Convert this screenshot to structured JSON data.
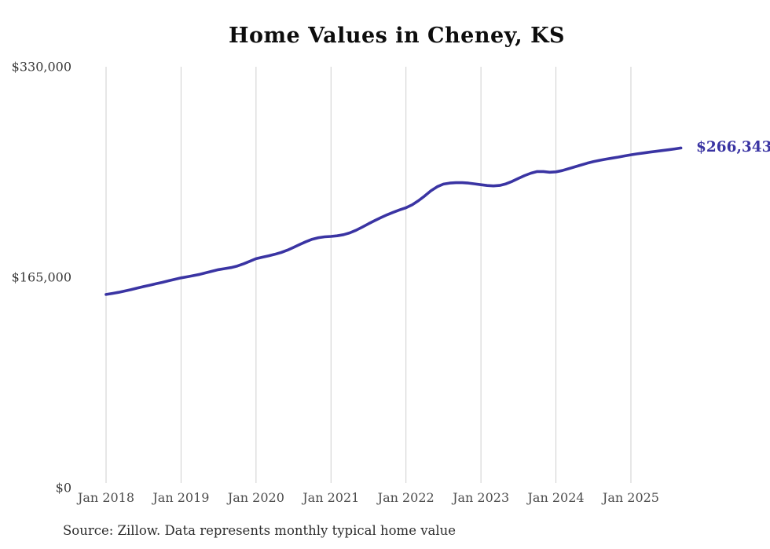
{
  "title": "Home Values in Cheney, KS",
  "source_note": "Source: Zillow. Data represents monthly typical home value",
  "colors": {
    "line": "#3a34a3",
    "gridline": "#cfcfcf",
    "title_text": "#0d0d0d",
    "y_tick_text": "#383838",
    "x_tick_text": "#4d4d4d",
    "source_text": "#2e2e2e",
    "background": "#ffffff"
  },
  "chart_data": {
    "type": "line",
    "title": "Home Values in Cheney, KS",
    "xlabel": "",
    "ylabel": "",
    "grid": "vertical-only",
    "legend": "none",
    "ylim": [
      0,
      330000
    ],
    "y_tick_values": [
      0,
      165000,
      330000
    ],
    "y_tick_labels": [
      "$0",
      "$165,000",
      "$330,000"
    ],
    "x_tick_labels": [
      "Jan 2018",
      "Jan 2019",
      "Jan 2020",
      "Jan 2021",
      "Jan 2022",
      "Jan 2023",
      "Jan 2024",
      "Jan 2025"
    ],
    "series": [
      {
        "name": "Monthly typical home value",
        "start_month": "2018-01",
        "end_month": "2025-09",
        "points_per_year": 12,
        "final_value": 266343,
        "final_value_label": "$266,343",
        "values": [
          151500,
          152300,
          153200,
          154200,
          155300,
          156500,
          157700,
          158800,
          159900,
          161000,
          162200,
          163400,
          164500,
          165400,
          166300,
          167300,
          168500,
          169800,
          171000,
          171800,
          172600,
          173800,
          175500,
          177500,
          179500,
          180700,
          181800,
          183000,
          184400,
          186200,
          188400,
          190700,
          192900,
          194800,
          196000,
          196700,
          197000,
          197500,
          198400,
          199800,
          201800,
          204300,
          206900,
          209400,
          211800,
          214000,
          216000,
          217800,
          219500,
          221800,
          225000,
          228800,
          232800,
          236000,
          238000,
          238800,
          239100,
          239100,
          238800,
          238200,
          237500,
          236900,
          236600,
          237000,
          238200,
          240200,
          242500,
          244700,
          246600,
          247900,
          247900,
          247300,
          247600,
          248600,
          250000,
          251500,
          253000,
          254400,
          255600,
          256700,
          257600,
          258400,
          259200,
          260100,
          261000,
          261700,
          262400,
          263100,
          263700,
          264300,
          264900,
          265600,
          266343
        ]
      }
    ]
  }
}
